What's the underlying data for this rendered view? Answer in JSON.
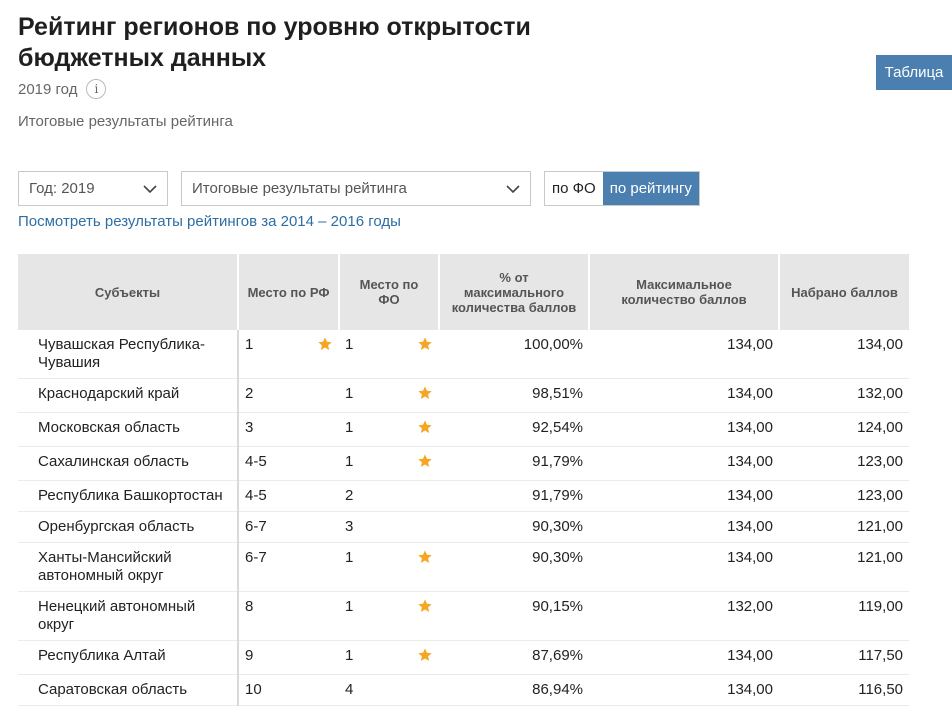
{
  "page": {
    "title": "Рейтинг регионов по уровню открытости бюджетных данных",
    "year_label": "2019 год",
    "info_icon_glyph": "i",
    "subtitle": "Итоговые результаты рейтинга",
    "table_view_button": "Таблица"
  },
  "filters": {
    "year_select": "Год: 2019",
    "type_select": "Итоговые результаты рейтинга",
    "toggle_fo": "по ФО",
    "toggle_rating": "по рейтингу",
    "active_toggle": "по рейтингу"
  },
  "history_link": "Посмотреть результаты рейтингов за 2014 – 2016 годы",
  "colors": {
    "accent": "#4a7fb0",
    "link": "#2e6ea4",
    "star": "#f5a623",
    "header_bg": "#e6e6e6"
  },
  "icons": {
    "select_arrow": "chevron-down-icon",
    "leader": "star-icon",
    "info": "info-icon"
  },
  "table": {
    "headers": {
      "subject": "Субъекты",
      "rank_rf": "Место по РФ",
      "rank_fo": "Место по ФО",
      "percent": "% от максимального количества баллов",
      "max_score": "Максимальное количество баллов",
      "score": "Набрано баллов"
    },
    "rows": [
      {
        "subject": "Чувашская Республика-Чувашия",
        "rank_rf": "1",
        "star_rf": true,
        "rank_fo": "1",
        "star_fo": true,
        "percent": "100,00%",
        "max_score": "134,00",
        "score": "134,00"
      },
      {
        "subject": "Краснодарский край",
        "rank_rf": "2",
        "star_rf": false,
        "rank_fo": "1",
        "star_fo": true,
        "percent": "98,51%",
        "max_score": "134,00",
        "score": "132,00"
      },
      {
        "subject": "Московская область",
        "rank_rf": "3",
        "star_rf": false,
        "rank_fo": "1",
        "star_fo": true,
        "percent": "92,54%",
        "max_score": "134,00",
        "score": "124,00"
      },
      {
        "subject": "Сахалинская область",
        "rank_rf": "4-5",
        "star_rf": false,
        "rank_fo": "1",
        "star_fo": true,
        "percent": "91,79%",
        "max_score": "134,00",
        "score": "123,00"
      },
      {
        "subject": "Республика Башкортостан",
        "rank_rf": "4-5",
        "star_rf": false,
        "rank_fo": "2",
        "star_fo": false,
        "percent": "91,79%",
        "max_score": "134,00",
        "score": "123,00"
      },
      {
        "subject": "Оренбургская область",
        "rank_rf": "6-7",
        "star_rf": false,
        "rank_fo": "3",
        "star_fo": false,
        "percent": "90,30%",
        "max_score": "134,00",
        "score": "121,00"
      },
      {
        "subject": "Ханты-Мансийский автономный округ",
        "rank_rf": "6-7",
        "star_rf": false,
        "rank_fo": "1",
        "star_fo": true,
        "percent": "90,30%",
        "max_score": "134,00",
        "score": "121,00"
      },
      {
        "subject": "Ненецкий автономный округ",
        "rank_rf": "8",
        "star_rf": false,
        "rank_fo": "1",
        "star_fo": true,
        "percent": "90,15%",
        "max_score": "132,00",
        "score": "119,00"
      },
      {
        "subject": "Республика Алтай",
        "rank_rf": "9",
        "star_rf": false,
        "rank_fo": "1",
        "star_fo": true,
        "percent": "87,69%",
        "max_score": "134,00",
        "score": "117,50"
      },
      {
        "subject": "Саратовская область",
        "rank_rf": "10",
        "star_rf": false,
        "rank_fo": "4",
        "star_fo": false,
        "percent": "86,94%",
        "max_score": "134,00",
        "score": "116,50"
      }
    ]
  }
}
